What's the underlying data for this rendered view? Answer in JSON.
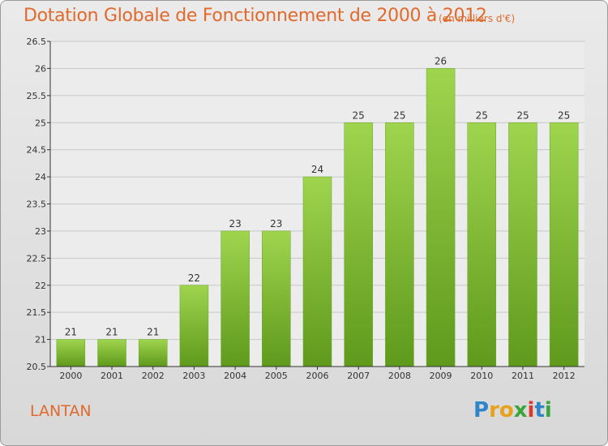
{
  "chart_data": {
    "type": "bar",
    "title": "Dotation Globale de Fonctionnement de 2000 à 2012",
    "subtitle": "(en milliers d'€)",
    "categories": [
      "2000",
      "2001",
      "2002",
      "2003",
      "2004",
      "2005",
      "2006",
      "2007",
      "2008",
      "2009",
      "2010",
      "2011",
      "2012"
    ],
    "values": [
      21,
      21,
      21,
      22,
      23,
      23,
      24,
      25,
      25,
      26,
      25,
      25,
      25
    ],
    "data_labels": [
      "21",
      "21",
      "21",
      "22",
      "23",
      "23",
      "24",
      "25",
      "25",
      "26",
      "25",
      "25",
      "25"
    ],
    "ylim": [
      20.5,
      26.5
    ],
    "yticks": [
      20.5,
      21,
      21.5,
      22,
      22.5,
      23,
      23.5,
      24,
      24.5,
      25,
      25.5,
      26,
      26.5
    ],
    "ytick_labels": [
      "20.5",
      "21",
      "21.5",
      "22",
      "22.5",
      "23",
      "23.5",
      "24",
      "24.5",
      "25",
      "25.5",
      "26",
      "26.5"
    ],
    "xlabel": "",
    "ylabel": "",
    "grid": "horizontal",
    "bar_color": "#7cb82f",
    "bar_color_light": "#9fd44e",
    "bar_color_dark": "#5f9a1c"
  },
  "footer": {
    "commune": "LANTAN",
    "logo_letters": [
      "P",
      "r",
      "o",
      "x",
      "i",
      "t",
      "i"
    ],
    "logo_colors": [
      "#2e86c8",
      "#e8a11a",
      "#e8a11a",
      "#3aa53a",
      "#d93a2b",
      "#2e86c8",
      "#3aa53a"
    ]
  },
  "colors": {
    "title": "#e06a2c",
    "grid": "#c8c8c8",
    "axis": "#333333"
  }
}
